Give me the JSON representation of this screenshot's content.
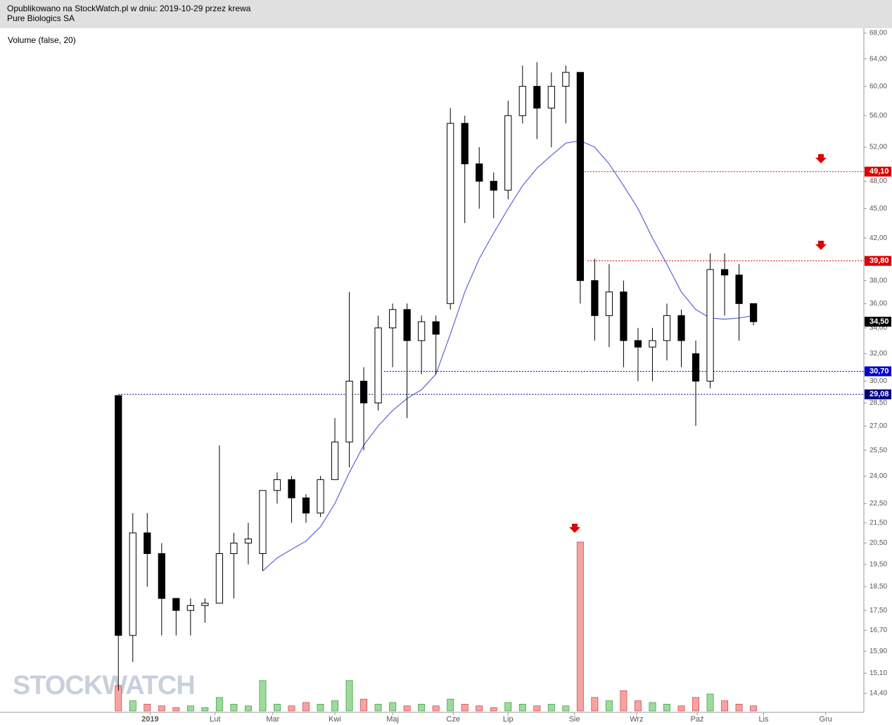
{
  "header": {
    "line1": "Opublikowano na StockWatch.pl w dniu: 2019-10-29 przez krewa",
    "line2": "Pure Biologics SA"
  },
  "chart_data": {
    "type": "candlestick",
    "indicator_label": "Volume (false, 20)",
    "watermark": "STOCKWATCH",
    "log_scale": true,
    "x": [
      0,
      1,
      2,
      3,
      4,
      5,
      6,
      7,
      8,
      9,
      10,
      11,
      12,
      13,
      14,
      15,
      16,
      17,
      18,
      19,
      20,
      21,
      22,
      23,
      24,
      25,
      26,
      27,
      28,
      29,
      30,
      31,
      32,
      33,
      34,
      35,
      36,
      37,
      38,
      39,
      40,
      41,
      42,
      43,
      44
    ],
    "open": [
      29,
      16.5,
      21,
      20,
      18,
      17.5,
      17.7,
      17.8,
      20,
      20.5,
      20,
      23.2,
      23.8,
      22.8,
      22,
      23.8,
      26,
      30,
      28.5,
      34,
      35.5,
      33,
      34.5,
      36,
      55,
      50,
      48,
      47,
      56,
      60,
      57,
      60,
      62,
      38,
      35,
      37,
      33,
      32.5,
      33,
      35,
      32,
      30,
      39,
      38.5,
      36
    ],
    "high": [
      29,
      22,
      22,
      20.5,
      18,
      18,
      18,
      25.8,
      21,
      21.5,
      23,
      24.2,
      24,
      23,
      24,
      27.5,
      37,
      31,
      35,
      36,
      36,
      35,
      35,
      57,
      56,
      52,
      49,
      58,
      63,
      63.5,
      62,
      63,
      62,
      40,
      39.5,
      38,
      34,
      34,
      36,
      35.5,
      33,
      40.5,
      40.5,
      39.5,
      36
    ],
    "low": [
      14.5,
      15.5,
      18.5,
      16.5,
      16.5,
      16.5,
      17,
      18,
      18,
      19.5,
      19.2,
      22.5,
      21.5,
      21.5,
      21.8,
      24,
      24.5,
      25.5,
      28,
      31,
      27.5,
      30.5,
      30.5,
      35.5,
      43.5,
      45,
      44,
      46,
      55,
      53,
      52,
      55,
      36,
      33,
      32.5,
      31,
      30,
      30,
      31.5,
      31,
      27,
      29.5,
      35,
      33,
      34.2
    ],
    "close": [
      16.5,
      21,
      20,
      18,
      17.5,
      17.7,
      17.8,
      20,
      20.5,
      20.7,
      23.2,
      23.8,
      22.8,
      22,
      23.8,
      26,
      30,
      28.5,
      34,
      35.5,
      33,
      34.5,
      33.5,
      55,
      50,
      48,
      47,
      56,
      60,
      57,
      60,
      62,
      38,
      35,
      37,
      33,
      32.5,
      33,
      35,
      33,
      30,
      39,
      38.5,
      36,
      34.5
    ],
    "volume": [
      15,
      6,
      4,
      3,
      2,
      3,
      2,
      8,
      4,
      3,
      18,
      4,
      3,
      5,
      4,
      6,
      18,
      7,
      4,
      5,
      3,
      4,
      3,
      7,
      4,
      3,
      2,
      5,
      4,
      3,
      4,
      3,
      100,
      8,
      6,
      12,
      6,
      5,
      4,
      3,
      8,
      10,
      6,
      4,
      3
    ],
    "volume_lim": [
      0,
      100
    ],
    "ma": {
      "color": "#5b63d6",
      "values": [
        null,
        null,
        null,
        null,
        null,
        null,
        null,
        null,
        null,
        null,
        19.2,
        19.8,
        20.2,
        20.6,
        21.3,
        22.5,
        24.2,
        25.8,
        27,
        28,
        28.8,
        29.4,
        30.5,
        33.5,
        37,
        40,
        42.5,
        45,
        47.5,
        49.5,
        51,
        52.5,
        52.8,
        52,
        50,
        47.5,
        45,
        42,
        39.5,
        37,
        35.5,
        34.8,
        34.7,
        34.8,
        35
      ]
    },
    "levels": [
      {
        "value": 49.1,
        "label": "49,10",
        "color": "#dd0000",
        "start": 31.9
      },
      {
        "value": 39.8,
        "label": "39,80",
        "color": "#dd0000",
        "start": 32.5
      },
      {
        "value": 30.7,
        "label": "30,70",
        "color": "#0000cc",
        "start": 18.4
      },
      {
        "value": 29.08,
        "label": "29,08",
        "color": "#000080",
        "start": 0
      }
    ],
    "last": {
      "value": 34.5,
      "label": "34,50"
    },
    "xlim": [
      -8.2,
      51.5
    ],
    "ylim": [
      14.4,
      68
    ],
    "xticks": [
      {
        "value": 2.2,
        "label": "2019"
      },
      {
        "value": 6.7,
        "label": "Lut"
      },
      {
        "value": 10.7,
        "label": "Mar"
      },
      {
        "value": 15,
        "label": "Kwi"
      },
      {
        "value": 19,
        "label": "Maj"
      },
      {
        "value": 23.2,
        "label": "Cze"
      },
      {
        "value": 27,
        "label": "Lip"
      },
      {
        "value": 31.6,
        "label": "Sie"
      },
      {
        "value": 35.9,
        "label": "Wrz"
      },
      {
        "value": 40.1,
        "label": "Paź"
      },
      {
        "value": 44.7,
        "label": "Lis"
      },
      {
        "value": 49,
        "label": "Gru"
      }
    ],
    "yticks": [
      {
        "value": 68,
        "label": "68,00"
      },
      {
        "value": 64,
        "label": "64,00"
      },
      {
        "value": 60,
        "label": "60,00"
      },
      {
        "value": 56,
        "label": "56,00"
      },
      {
        "value": 52,
        "label": "52,00"
      },
      {
        "value": 48,
        "label": "48,00"
      },
      {
        "value": 45,
        "label": "45,00"
      },
      {
        "value": 42,
        "label": "42,00"
      },
      {
        "value": 40,
        "label": "40,00"
      },
      {
        "value": 38,
        "label": "38,00"
      },
      {
        "value": 36,
        "label": "36,00"
      },
      {
        "value": 34,
        "label": "34,00"
      },
      {
        "value": 32,
        "label": "32,00"
      },
      {
        "value": 30,
        "label": "30,00"
      },
      {
        "value": 28.5,
        "label": "28,50"
      },
      {
        "value": 27,
        "label": "27,00"
      },
      {
        "value": 25.5,
        "label": "25,50"
      },
      {
        "value": 24,
        "label": "24,00"
      },
      {
        "value": 22.5,
        "label": "22,50"
      },
      {
        "value": 21.5,
        "label": "21,50"
      },
      {
        "value": 20.5,
        "label": "20,50"
      },
      {
        "value": 19.5,
        "label": "19,50"
      },
      {
        "value": 18.5,
        "label": "18,50"
      },
      {
        "value": 17.5,
        "label": "17,50"
      },
      {
        "value": 16.7,
        "label": "16,70"
      },
      {
        "value": 15.9,
        "label": "15,90"
      },
      {
        "value": 15.1,
        "label": "15,10"
      },
      {
        "value": 14.4,
        "label": "14,40"
      }
    ]
  }
}
